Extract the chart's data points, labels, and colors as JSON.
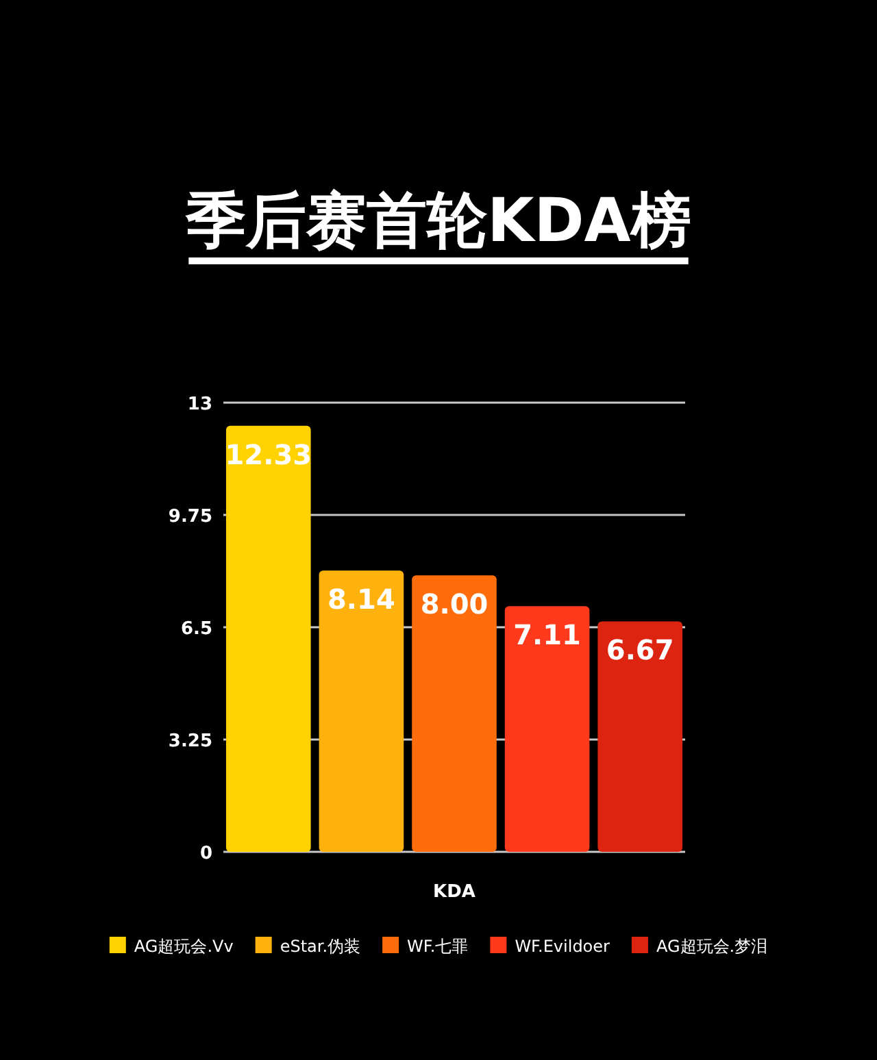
{
  "chart_data": {
    "type": "bar",
    "title": "季后赛首轮KDA榜",
    "categories": [
      "KDA"
    ],
    "series": [
      {
        "name": "AG超玩会.Vv",
        "color": "#ffd200",
        "values": [
          12.33
        ],
        "value_labels": [
          "12.33"
        ]
      },
      {
        "name": "eStar.伪装",
        "color": "#ffb20e",
        "values": [
          8.14
        ],
        "value_labels": [
          "8.14"
        ]
      },
      {
        "name": "WF.七罪",
        "color": "#ff6c0c",
        "values": [
          8.0
        ],
        "value_labels": [
          "8.00"
        ]
      },
      {
        "name": "WF.Evildoer",
        "color": "#ff3a1c",
        "values": [
          7.11
        ],
        "value_labels": [
          "7.11"
        ]
      },
      {
        "name": "AG超玩会.梦泪",
        "color": "#dd2410",
        "values": [
          6.67
        ],
        "value_labels": [
          "6.67"
        ]
      }
    ],
    "ylim": [
      0,
      13
    ],
    "yticks": [
      0,
      3.25,
      6.5,
      9.75,
      13
    ],
    "grid": "y",
    "legend": "bottom"
  }
}
